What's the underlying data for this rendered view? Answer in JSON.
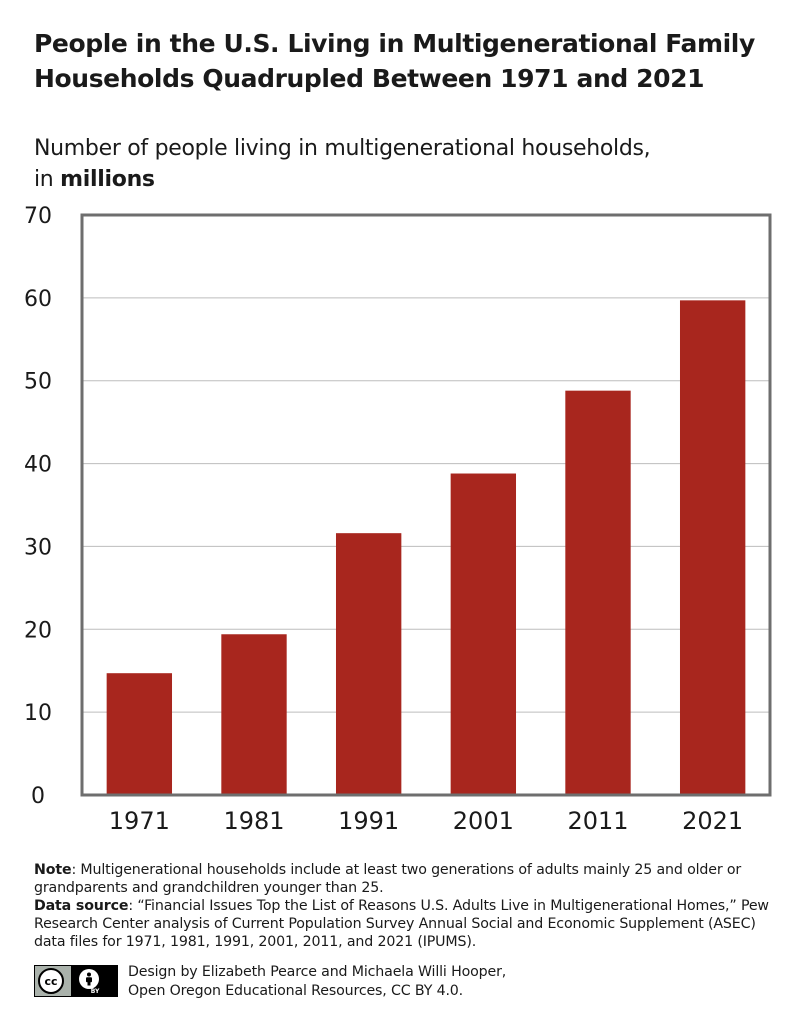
{
  "title": {
    "line1": "People in the U.S. Living in Multigenerational Family",
    "line2": "Households Quadrupled Between 1971 and 2021"
  },
  "subtitle": {
    "line1": "Number of people living in multigenerational households,",
    "line2_prefix": "in",
    "line2_bold": "millions"
  },
  "colors": {
    "bar": "#a8261e",
    "frame": "#6e6e6e",
    "grid": "#bdbdbd"
  },
  "chart_data": {
    "type": "bar",
    "categories": [
      "1971",
      "1981",
      "1991",
      "2001",
      "2011",
      "2021"
    ],
    "values": [
      14.7,
      19.4,
      31.6,
      38.8,
      48.8,
      59.7
    ],
    "yticks": [
      0,
      10,
      20,
      30,
      40,
      50,
      60,
      70
    ],
    "ylim": [
      0,
      70
    ],
    "title": "People in the U.S. Living in Multigenerational Family Households Quadrupled Between 1971 and 2021",
    "xlabel": "",
    "ylabel": "Number of people living in multigenerational households, in millions",
    "grid": true,
    "legend": "none"
  },
  "notes": {
    "note_label": "Note",
    "note_text": ": Multigenerational households include at least two generations of adults mainly 25 and older or grandparents and grandchildren younger than 25.",
    "source_label": "Data source",
    "source_text": ": “Financial Issues Top the List of Reasons U.S. Adults Live in Multigenerational Homes,” Pew Research Center analysis of Current Population Survey Annual Social and Economic Supplement (ASEC) data files for 1971, 1981, 1991, 2001, 2011, and 2021 (IPUMS)."
  },
  "credit": {
    "license_badge_text": "BY",
    "line1": "Design by Elizabeth Pearce and Michaela Willi Hooper,",
    "line2": "Open Oregon Educational Resources, CC BY 4.0."
  }
}
